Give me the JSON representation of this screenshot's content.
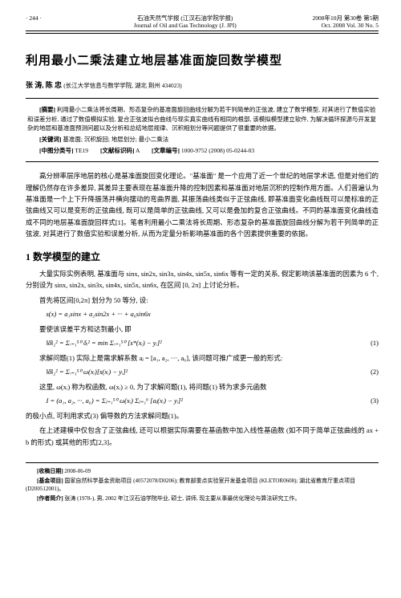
{
  "header": {
    "page_num": "· 244 ·",
    "journal_cn": "石油天然气学报 (江汉石油学院学报)",
    "journal_en": "Journal of Oil and Gas Technology (J. JPI)",
    "date_cn": "2008年10月 第30卷 第5期",
    "date_en": "Oct. 2008  Vol. 30  No. 5"
  },
  "title": "利用最小二乘法建立地层基准面旋回数学模型",
  "authors": "张 涛, 陈 忠",
  "affiliation": "(长江大学信息与数学学院, 湖北 荆州 434023)",
  "abstract": {
    "label": "[摘要]",
    "text": "利用最小二乘法将长周期、形态复杂的基准面旋回曲线分解为若干列简单的正弦波, 建立了数学模型, 对其进行了数值实验和误差分析, 通过了数值模拟实验, 复合正弦波拟合曲线与现实真实曲线有相同的根部, 该模拟模型建立软件, 为解决循环探源与开发复杂的地层和基准面预测问题以及分析和总结地层规律、沉积相划分等问题提供了很重要的依据。"
  },
  "keywords": {
    "label": "[关键词]",
    "text": "基准面; 沉积旋回; 地层划分; 最小二乘法"
  },
  "classinfo": {
    "clc_label": "[中图分类号]",
    "clc": "TE19",
    "doc_label": "[文献标识码]",
    "doc": "A",
    "artno_label": "[文章编号]",
    "artno": "1000-9752 (2008) 05-0244-03"
  },
  "intro": "高分辨率层序地层的核心是基准面旋回变化理论。\"基准面\" 是一个应用了近一个世纪的地层学术语, 但是对他们的理解仍然存在许多差异, 其差异主要表现在基准面升降的控制因素和基准面对地层沉积的控制作用方面。人们普遍认为基准面是一个上下升降振荡并横向摆动的弯曲界面, 其振荡曲线类似于正弦曲线, 即基准面变化曲线既可以是标准的正弦曲线又可以是变形的正弦曲线, 既可以是简单的正弦曲线, 又可以是叠加的复合正弦曲线。不同的基准面变化曲线造成不同的地层基准面旋回样式[1]。笔者利用最小二乘法将长周期、形态复杂的基准面旋回曲线分解为若干列简单的正弦波, 对其进行了数值实验和误差分析, 从而为定量分析影响基准面的各个因素提供重要的依据。",
  "section1": "1  数学模型的建立",
  "para1": "大量实际实例表明, 基准面与 sinx, sin2x, sin3x, sin4x, sin5x, sin6x 等有一定的关系, 假定影响该基准面的因素为 6 个, 分别设为 sinx, sin2x, sin3x, sin4x, sin5x, sin6x, 在区间 [0, 2π] 上讨论分析。",
  "para2": "首先将区间[0,2π] 划分为 50 等分, 设:",
  "eq_s": "s(x) = a₁sinx + a₂sin2x + ··· + a₆sin6x",
  "para3": "要使该误差平方和达到最小, 即",
  "eq1": "‖δ‖₂² = Σᵢ₌₁⁵⁰ δᵢ² = min Σᵢ₌₁⁵⁰ [s*(xᵢ) − yᵢ]²",
  "eq1no": "(1)",
  "para4": "求解问题(1) 实际上是需求解系数 aⱼ = [a₁, a₂, ···, a₆], 该问题可推广成更一般的形式:",
  "eq2": "‖δ‖₂² = Σᵢ₌₁⁵⁰ ω(xᵢ)[s(xᵢ) − yᵢ]²",
  "eq2no": "(2)",
  "para5": "这里, ω(xᵢ) 称为权函数, ω(xᵢ) ≥ 0, 为了求解问题(1), 将问题(1) 转为求多元函数",
  "eq3": "I = (a₁, a₂, ···, a₆) = Σⱼ₌₁⁵⁰ ω(xᵢ) Σⱼ₌₁⁶ [aⱼ(xᵢ) − yᵢ]²",
  "eq3no": "(3)",
  "para6": "的极小点, 可利用求式(3) 偏导数的方法求解问题(1)。",
  "para7": "在上述建模中仅包含了正弦曲线, 还可以根据实际需要在基函数中加入线性基函数 (如不同于简单正弦曲线的 ax + b 的形式) 或其他的形式[2,3]。",
  "footnotes": {
    "rec_label": "[收稿日期]",
    "rec": "2008-06-09",
    "fund_label": "[基金项目]",
    "fund": "国家自然科学基金资助项目 (40572078/D0206); 教育部重点实验室开发基金项目 (KLETOR0608); 湖北省教育厅重点项目 (D200512001)。",
    "author_label": "[作者简介]",
    "author": "张涛 (1978-), 男, 2002 年江汉石油学院毕业, 硕士, 讲师, 现主要从事最优化理论与算法研究工作。"
  }
}
